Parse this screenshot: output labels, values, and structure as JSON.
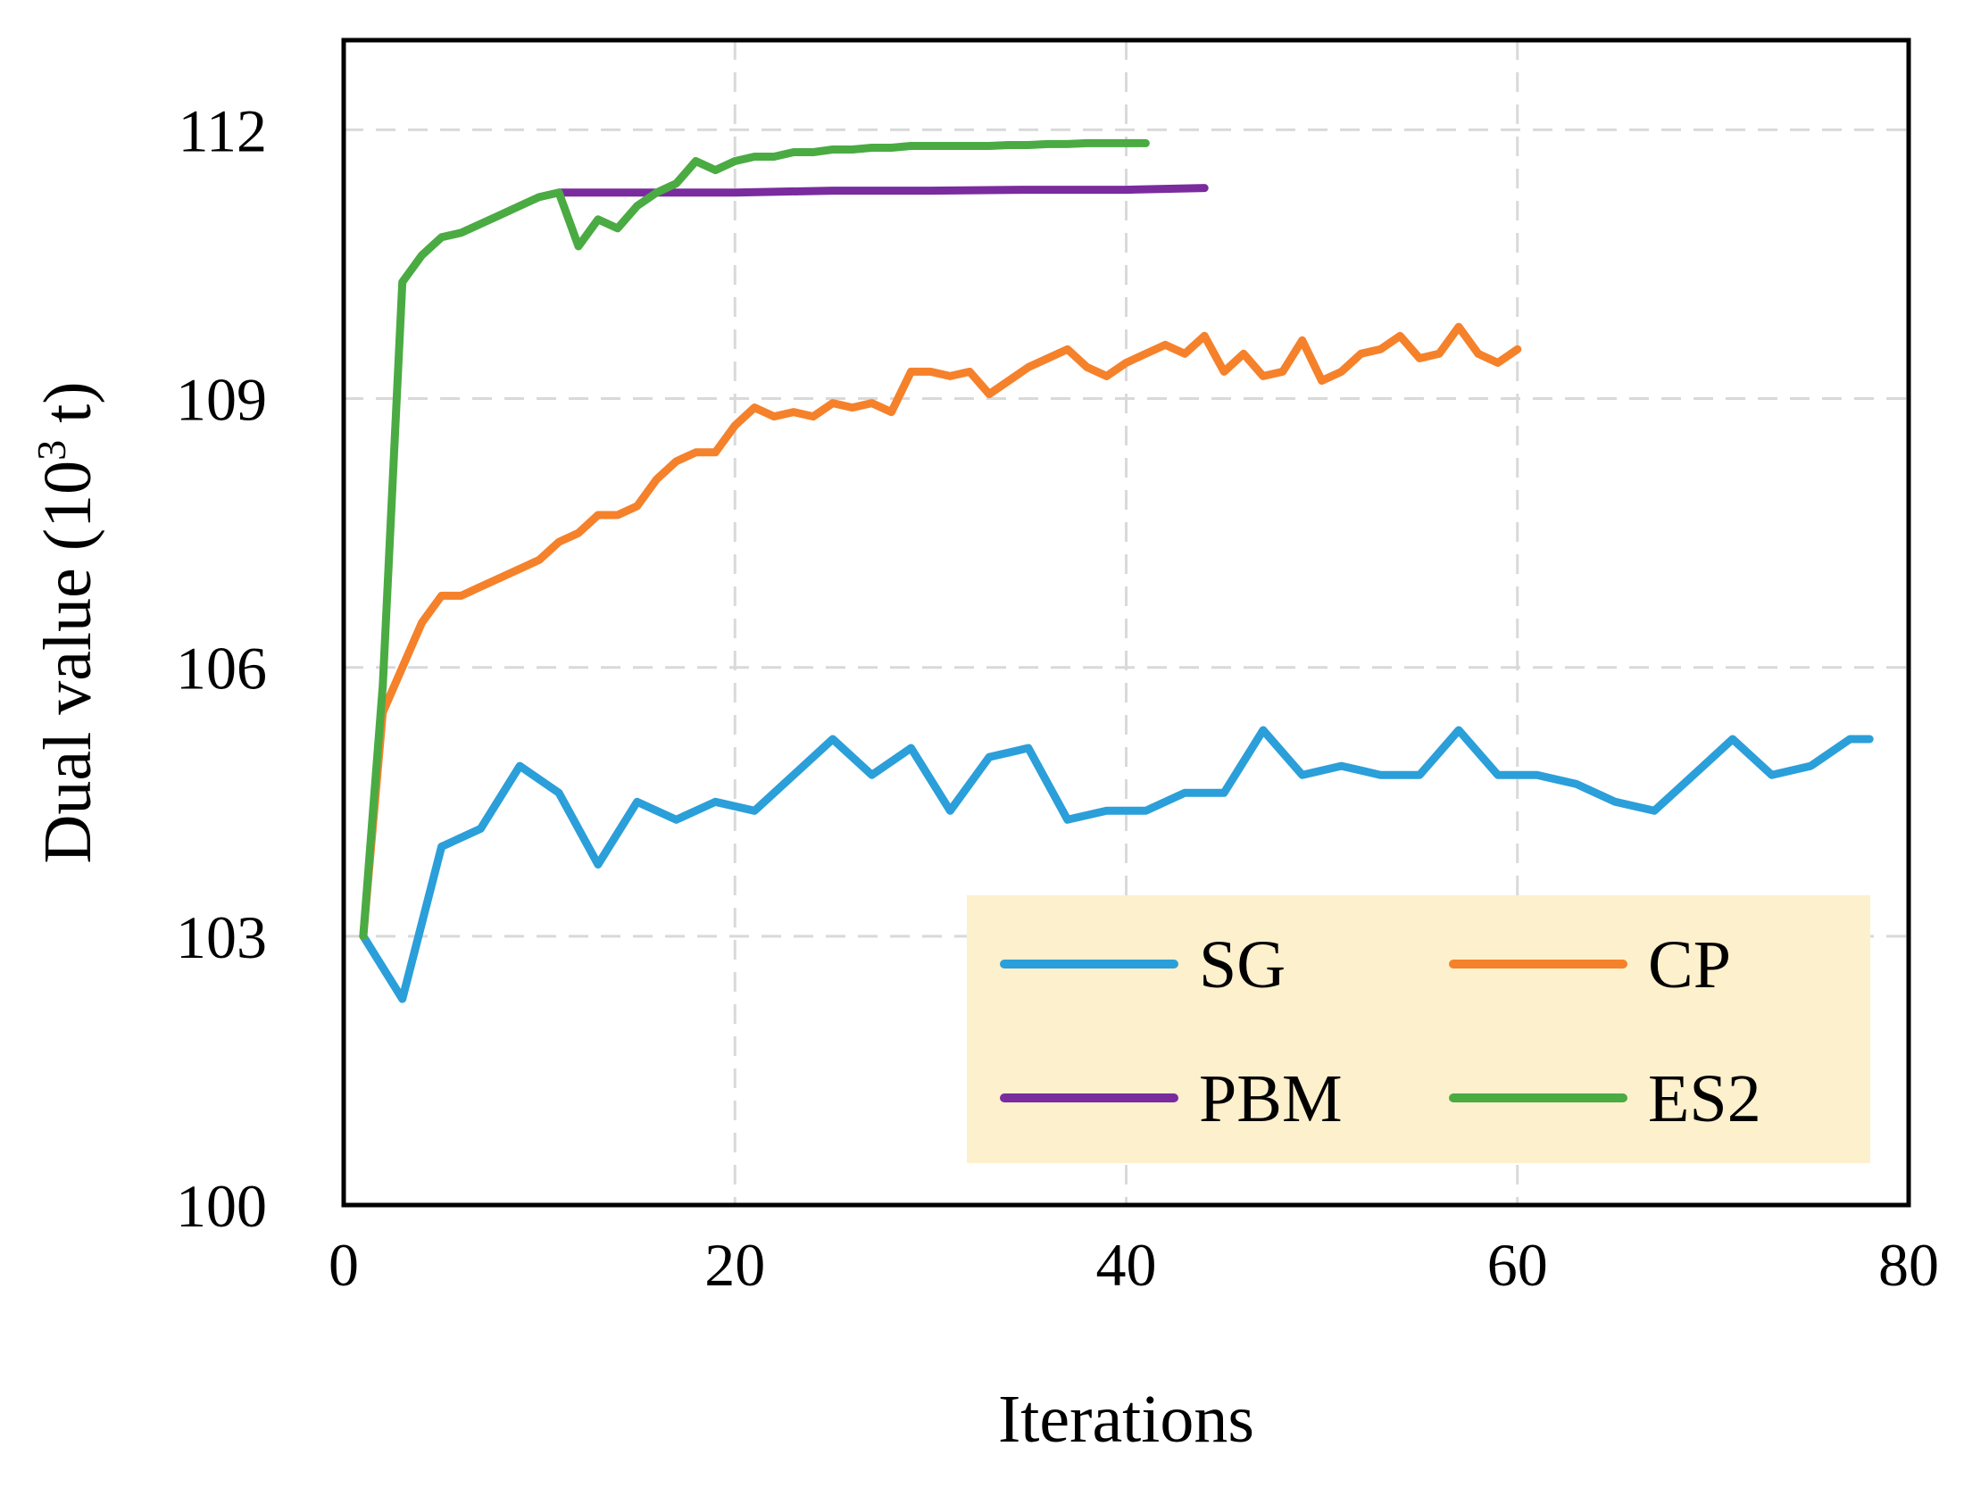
{
  "chart_data": {
    "type": "line",
    "xlabel": "Iterations",
    "ylabel_prefix": "Dual value (10",
    "ylabel_sup": "3",
    "ylabel_suffix": " t)",
    "xlim": [
      0,
      80
    ],
    "ylim": [
      100,
      113
    ],
    "xticks": [
      0,
      20,
      40,
      60,
      80
    ],
    "yticks": [
      100,
      103,
      106,
      109,
      112
    ],
    "grid": true,
    "legend_position": "bottom-right",
    "legend_background": "#fdf0cc",
    "series": [
      {
        "name": "SG",
        "color": "#2b9fd9",
        "x": [
          1,
          3,
          5,
          7,
          9,
          11,
          13,
          15,
          17,
          19,
          21,
          23,
          25,
          27,
          29,
          31,
          33,
          35,
          37,
          39,
          41,
          43,
          45,
          47,
          49,
          51,
          53,
          55,
          57,
          59,
          61,
          63,
          65,
          67,
          69,
          71,
          73,
          75,
          77,
          78
        ],
        "y": [
          103.0,
          102.3,
          104.0,
          104.2,
          104.9,
          104.6,
          103.8,
          104.5,
          104.3,
          104.5,
          104.4,
          104.8,
          105.2,
          104.8,
          105.1,
          104.4,
          105.0,
          105.1,
          104.3,
          104.4,
          104.4,
          104.6,
          104.6,
          105.3,
          104.8,
          104.9,
          104.8,
          104.8,
          105.3,
          104.8,
          104.8,
          104.7,
          104.5,
          104.4,
          104.8,
          105.2,
          104.8,
          104.9,
          105.2,
          105.2
        ]
      },
      {
        "name": "CP",
        "color": "#f5812b",
        "x": [
          1,
          2,
          3,
          4,
          5,
          6,
          7,
          8,
          9,
          10,
          11,
          12,
          13,
          14,
          15,
          16,
          17,
          18,
          19,
          20,
          21,
          22,
          23,
          24,
          25,
          26,
          27,
          28,
          29,
          30,
          31,
          32,
          33,
          34,
          35,
          36,
          37,
          38,
          39,
          40,
          41,
          42,
          43,
          44,
          45,
          46,
          47,
          48,
          49,
          50,
          51,
          52,
          53,
          54,
          55,
          56,
          57,
          58,
          59,
          60
        ],
        "y": [
          103.0,
          105.5,
          106.0,
          106.5,
          106.8,
          106.8,
          106.9,
          107.0,
          107.1,
          107.2,
          107.4,
          107.5,
          107.7,
          107.7,
          107.8,
          108.1,
          108.3,
          108.4,
          108.4,
          108.7,
          108.9,
          108.8,
          108.85,
          108.8,
          108.95,
          108.9,
          108.95,
          108.85,
          109.3,
          109.3,
          109.25,
          109.3,
          109.05,
          109.2,
          109.35,
          109.45,
          109.55,
          109.35,
          109.25,
          109.4,
          109.5,
          109.6,
          109.5,
          109.7,
          109.3,
          109.5,
          109.25,
          109.3,
          109.65,
          109.2,
          109.3,
          109.5,
          109.55,
          109.7,
          109.45,
          109.5,
          109.8,
          109.5,
          109.4,
          109.55
        ]
      },
      {
        "name": "PBM",
        "color": "#7a2b9e",
        "x": [
          11,
          15,
          20,
          25,
          30,
          35,
          40,
          44
        ],
        "y": [
          111.3,
          111.3,
          111.3,
          111.32,
          111.32,
          111.33,
          111.33,
          111.35
        ]
      },
      {
        "name": "ES2",
        "color": "#4aab42",
        "x": [
          1,
          2,
          3,
          4,
          5,
          6,
          7,
          8,
          9,
          10,
          11,
          12,
          13,
          14,
          15,
          16,
          17,
          18,
          19,
          20,
          21,
          22,
          23,
          24,
          25,
          26,
          27,
          28,
          29,
          30,
          31,
          32,
          33,
          34,
          35,
          36,
          37,
          38,
          39,
          40,
          41
        ],
        "y": [
          103.0,
          105.8,
          110.3,
          110.6,
          110.8,
          110.85,
          110.95,
          111.05,
          111.15,
          111.25,
          111.3,
          110.7,
          111.0,
          110.9,
          111.15,
          111.3,
          111.4,
          111.65,
          111.55,
          111.65,
          111.7,
          111.7,
          111.75,
          111.75,
          111.78,
          111.78,
          111.8,
          111.8,
          111.82,
          111.82,
          111.82,
          111.82,
          111.82,
          111.83,
          111.83,
          111.84,
          111.84,
          111.85,
          111.85,
          111.85,
          111.85
        ]
      }
    ]
  }
}
